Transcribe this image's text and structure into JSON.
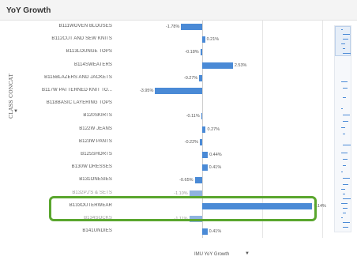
{
  "title": "YoY Growth",
  "yaxis_title": "CLASS CONCAT",
  "xaxis_title": "IMU YoY Growth",
  "chart_data": {
    "type": "bar",
    "orientation": "horizontal",
    "xlabel": "IMU YoY Growth",
    "ylabel": "CLASS CONCAT",
    "categories": [
      "B111WOVEN BLOUSES",
      "B112CUT AND SEW KNITS",
      "B113LOUNGE TOPS",
      "B114SWEATERS",
      "B115BLAZERS AND JACKETS",
      "B117W PATTERNED KNIT TO...",
      "B118BASIC LAYERING TOPS",
      "B120SKIRTS",
      "B122W JEANS",
      "B123W PANTS",
      "B125SHORTS",
      "B130W DRESSES",
      "B131ONESIES",
      "B132PJ'S & SETS",
      "B133OUTERWEAR",
      "B134SOCKS",
      "B141UNDIES"
    ],
    "values": [
      -1.78,
      0.21,
      -0.18,
      2.53,
      -0.27,
      -3.95,
      0.0,
      -0.11,
      0.27,
      -0.22,
      0.44,
      0.41,
      -0.65,
      -1.1,
      9.14,
      -1.11,
      0.41
    ],
    "value_labels": [
      "-1.78%",
      "0.21%",
      "-0.18%",
      "2.53%",
      "-0.27%",
      "-3.95%",
      "",
      "-0.11%",
      "0.27%",
      "-0.22%",
      "0.44%",
      "0.41%",
      "-0.65%",
      "-1.10%",
      "9.14%",
      "-1.11%",
      "0.41%"
    ],
    "faded": [
      false,
      false,
      false,
      false,
      false,
      false,
      false,
      false,
      false,
      false,
      false,
      false,
      false,
      true,
      false,
      true,
      false
    ],
    "xlim": [
      -4.5,
      10.5
    ],
    "gridlines": [
      0,
      5,
      10
    ],
    "bar_color": "#4a8ad6",
    "highlight_category": "B133OUTERWEAR",
    "highlight_color": "#5aa62e"
  }
}
